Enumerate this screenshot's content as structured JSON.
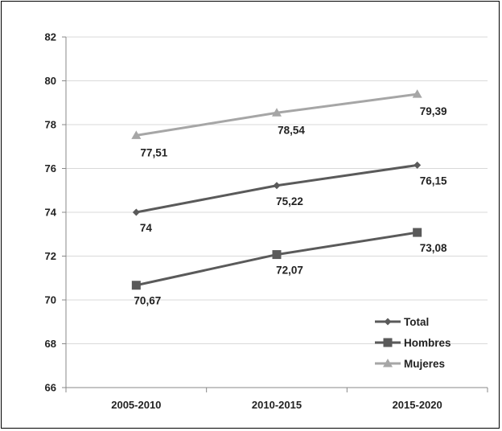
{
  "chart_data": {
    "type": "line",
    "categories": [
      "2005-2010",
      "2010-2015",
      "2015-2020"
    ],
    "ylim": [
      66,
      82
    ],
    "yticks": [
      66,
      68,
      70,
      72,
      74,
      76,
      78,
      80,
      82
    ],
    "grid": true,
    "legend_position": "bottom-right",
    "series": [
      {
        "name": "Total",
        "values": [
          74,
          75.22,
          76.15
        ],
        "labels": [
          "74",
          "75,22",
          "76,15"
        ],
        "color": "#5a5a5a",
        "marker": "diamond"
      },
      {
        "name": "Hombres",
        "values": [
          70.67,
          72.07,
          73.08
        ],
        "labels": [
          "70,67",
          "72,07",
          "73,08"
        ],
        "color": "#5a5a5a",
        "marker": "square"
      },
      {
        "name": "Mujeres",
        "values": [
          77.51,
          78.54,
          79.39
        ],
        "labels": [
          "77,51",
          "78,54",
          "79,39"
        ],
        "color": "#a6a6a6",
        "marker": "triangle"
      }
    ]
  }
}
